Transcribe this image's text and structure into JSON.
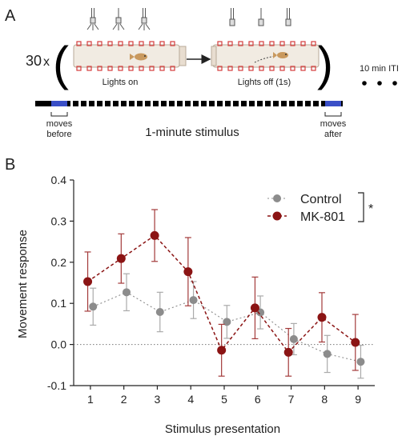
{
  "panel_a": {
    "letter": "A",
    "repeat_count": "30",
    "repeat_symbol": "x",
    "label_lights_on": "Lights on",
    "label_lights_off": "Lights off (1s)",
    "iti_label": "10 min ITI",
    "label_moves_before_1": "moves",
    "label_moves_before_2": "before",
    "label_moves_after_1": "moves",
    "label_moves_after_2": "after",
    "stimulus_label": "1-minute stimulus",
    "colors": {
      "window": "#3a4fc7",
      "bar": "#000000",
      "led": "#d43c3c",
      "fish": "#c9995e"
    }
  },
  "chart_data": {
    "panel_letter": "B",
    "type": "line",
    "title": "",
    "xlabel": "Stimulus presentation",
    "ylabel": "Movement response",
    "x": [
      1,
      2,
      3,
      4,
      5,
      6,
      7,
      8,
      9
    ],
    "xticks": [
      "1",
      "2",
      "3",
      "4",
      "5",
      "6",
      "7",
      "8",
      "9"
    ],
    "yticks": [
      "-0.1",
      "0.0",
      "0.1",
      "0.2",
      "0.3",
      "0.4"
    ],
    "ylim": [
      -0.1,
      0.4
    ],
    "xlim": [
      0.5,
      9.5
    ],
    "reference_line": 0.0,
    "legend_position": "top-right",
    "significance_marker": "*",
    "series": [
      {
        "name": "Control",
        "color": "#8c8c8c",
        "errcolor": "#aaaaaa",
        "values": [
          0.092,
          0.127,
          0.079,
          0.108,
          0.055,
          0.078,
          0.013,
          -0.023,
          -0.042
        ],
        "err": [
          0.045,
          0.045,
          0.048,
          0.045,
          0.04,
          0.04,
          0.038,
          0.045,
          0.04
        ]
      },
      {
        "name": "MK-801",
        "color": "#8b1414",
        "errcolor": "#a33a3a",
        "values": [
          0.153,
          0.209,
          0.265,
          0.177,
          -0.014,
          0.089,
          -0.019,
          0.066,
          0.005
        ],
        "err": [
          0.072,
          0.06,
          0.063,
          0.083,
          0.063,
          0.075,
          0.058,
          0.06,
          0.068
        ]
      }
    ]
  }
}
